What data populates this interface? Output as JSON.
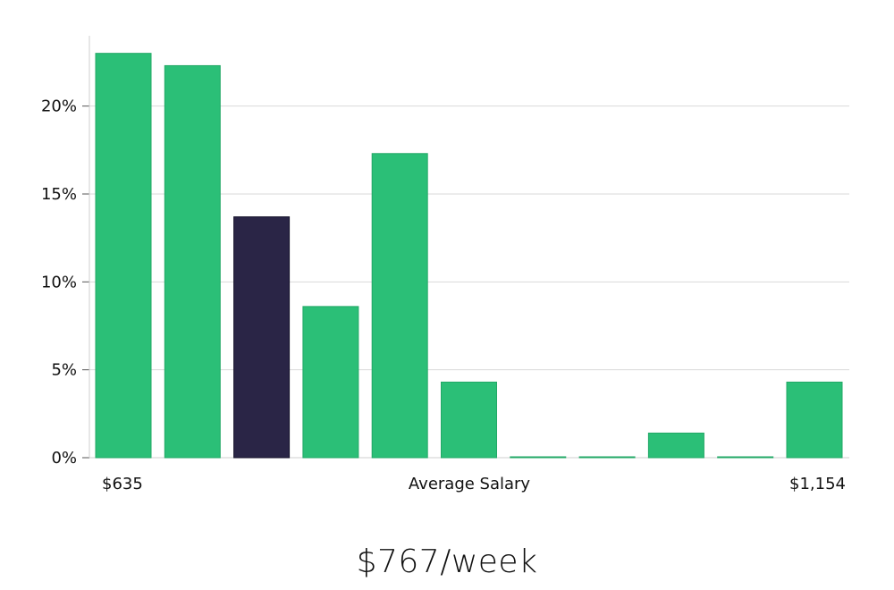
{
  "chart_data": {
    "type": "bar",
    "title": "",
    "xlabel": "Average Salary",
    "ylabel": "",
    "x_range_labels": {
      "min": "$635",
      "max": "$1,154"
    },
    "ylim": [
      0,
      24
    ],
    "yticks": [
      0,
      5,
      10,
      15,
      20
    ],
    "ytick_labels": [
      "0%",
      "5%",
      "10%",
      "15%",
      "20%"
    ],
    "grid": true,
    "values": [
      23.0,
      22.3,
      13.7,
      8.6,
      17.3,
      4.3,
      0.05,
      0.05,
      1.4,
      0.05,
      4.3
    ],
    "highlight_index": 2,
    "colors": {
      "bar": "#2bbf77",
      "highlight": "#2a2546",
      "grid": "#d9d9d9",
      "axis": "#cfcfcf"
    }
  },
  "summary_value": "$767/week"
}
